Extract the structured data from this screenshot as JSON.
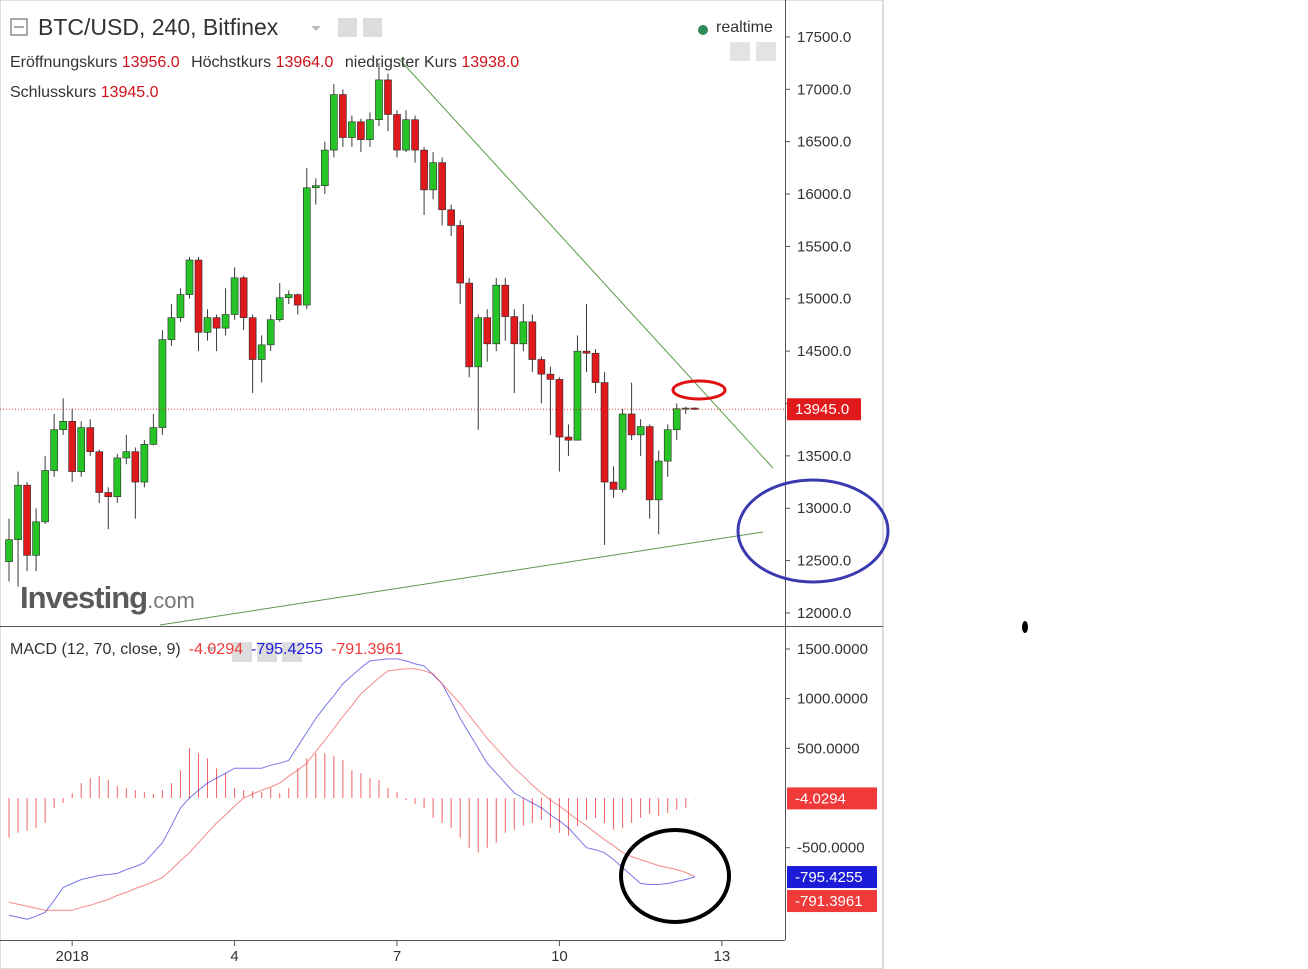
{
  "header": {
    "title": "BTC/USD, 240, Bitfinex",
    "status": "realtime",
    "ohlc": [
      {
        "label": "Eröffnungskurs",
        "value": "13956.0"
      },
      {
        "label": "Höchstkurs",
        "value": "13964.0"
      },
      {
        "label": "niedrigster Kurs",
        "value": "13938.0"
      },
      {
        "label": "Schlusskurs",
        "value": "13945.0"
      }
    ]
  },
  "watermark": [
    "Investing",
    ".com"
  ],
  "chart_data": [
    {
      "type": "candlestick",
      "up_color": "#27c427",
      "down_color": "#e0191c",
      "x": [
        -28,
        -24,
        -20,
        -16,
        -12,
        -8,
        -4,
        0,
        4,
        8,
        12,
        16,
        20,
        24,
        28,
        32,
        36,
        40,
        44,
        48,
        52,
        56,
        60,
        64,
        68,
        72,
        76,
        80,
        84,
        88,
        92,
        96,
        100,
        104,
        108,
        112,
        116,
        120,
        124,
        128,
        132,
        136,
        140,
        144,
        148,
        152,
        156,
        160,
        164,
        168,
        172,
        176,
        180,
        184,
        188,
        192,
        196,
        200,
        204,
        208,
        212,
        216,
        220,
        224,
        228,
        232,
        236,
        240,
        244,
        248,
        252,
        256,
        260,
        264,
        268,
        272,
        276
      ],
      "open": [
        12490,
        12700,
        13220,
        12550,
        12870,
        13360,
        13750,
        13830,
        13350,
        13770,
        13540,
        13150,
        13110,
        13480,
        13540,
        13250,
        13610,
        13770,
        14610,
        14820,
        15040,
        15370,
        14680,
        14820,
        14720,
        14850,
        15200,
        14820,
        14420,
        14560,
        14800,
        15010,
        15040,
        14940,
        16060,
        16080,
        16420,
        16950,
        16540,
        16690,
        16520,
        16710,
        17090,
        16760,
        16420,
        16710,
        16420,
        16040,
        16300,
        15850,
        15700,
        15150,
        14350,
        14820,
        14570,
        15130,
        14830,
        14570,
        14780,
        14420,
        14280,
        14230,
        13680,
        13650,
        14500,
        14480,
        14200,
        13250,
        13180,
        13900,
        13700,
        13780,
        13080,
        13450,
        13750,
        13950,
        13956
      ],
      "high": [
        12900,
        13350,
        13250,
        13000,
        13500,
        13900,
        14050,
        13950,
        13830,
        13850,
        13560,
        13200,
        13520,
        13700,
        13580,
        13650,
        13900,
        14700,
        14950,
        15100,
        15400,
        15400,
        14900,
        14850,
        15100,
        15300,
        15220,
        14850,
        14650,
        14850,
        15150,
        15080,
        15050,
        16250,
        16150,
        16500,
        17050,
        17000,
        16750,
        16720,
        16780,
        17250,
        17150,
        16800,
        16800,
        16750,
        16450,
        16400,
        16350,
        15900,
        15750,
        15200,
        14850,
        14900,
        15200,
        15200,
        14900,
        14950,
        14850,
        14450,
        14350,
        14250,
        13800,
        14650,
        14950,
        14520,
        14300,
        13400,
        13950,
        14200,
        13850,
        13800,
        13550,
        13800,
        14000,
        13970,
        13964
      ],
      "low": [
        12300,
        12250,
        12400,
        12400,
        12850,
        13300,
        13700,
        13250,
        13300,
        13500,
        13050,
        12800,
        13050,
        13420,
        12900,
        13200,
        13600,
        13700,
        14550,
        14780,
        15000,
        14500,
        14600,
        14500,
        14650,
        14800,
        14700,
        14100,
        14200,
        14500,
        14780,
        14950,
        14850,
        14900,
        15900,
        16000,
        16350,
        16450,
        16450,
        16400,
        16450,
        16650,
        16600,
        16350,
        16400,
        16300,
        15800,
        15950,
        15700,
        15600,
        14950,
        14250,
        13750,
        14400,
        14500,
        14600,
        14100,
        14500,
        14300,
        14000,
        13700,
        13350,
        13500,
        13650,
        14300,
        14100,
        12650,
        13100,
        13150,
        13650,
        13500,
        12900,
        12750,
        13300,
        13650,
        13900,
        13938
      ],
      "close": [
        12700,
        13220,
        12550,
        12870,
        13360,
        13750,
        13830,
        13350,
        13770,
        13540,
        13150,
        13110,
        13480,
        13540,
        13250,
        13610,
        13770,
        14610,
        14820,
        15040,
        15370,
        14680,
        14820,
        14720,
        14850,
        15200,
        14820,
        14420,
        14560,
        14800,
        15010,
        15040,
        14940,
        16060,
        16080,
        16420,
        16950,
        16540,
        16690,
        16520,
        16710,
        17090,
        16760,
        16420,
        16710,
        16420,
        16040,
        16300,
        15850,
        15700,
        15150,
        14350,
        14820,
        14570,
        15130,
        14830,
        14570,
        14780,
        14420,
        14280,
        14230,
        13680,
        13650,
        14500,
        14480,
        14200,
        13250,
        13180,
        13900,
        13700,
        13780,
        13080,
        13450,
        13750,
        13950,
        13956,
        13945
      ],
      "last_label": "13945.0",
      "xlim": [
        -32,
        316
      ],
      "ylim": [
        11885,
        17853
      ],
      "xticks": [
        {
          "value": 0,
          "label": "2018"
        },
        {
          "value": 72,
          "label": "4"
        },
        {
          "value": 144,
          "label": "7"
        },
        {
          "value": 216,
          "label": "10"
        },
        {
          "value": 288,
          "label": "13"
        }
      ],
      "yticks": [
        {
          "value": 12000,
          "label": "12000.0"
        },
        {
          "value": 12500,
          "label": "12500.0"
        },
        {
          "value": 13000,
          "label": "13000.0"
        },
        {
          "value": 13500,
          "label": "13500.0"
        },
        {
          "value": 14000,
          "label": "14000.0"
        },
        {
          "value": 14500,
          "label": "14500.0"
        },
        {
          "value": 15000,
          "label": "15000.0"
        },
        {
          "value": 15500,
          "label": "15500.0"
        },
        {
          "value": 16000,
          "label": "16000.0"
        },
        {
          "value": 16500,
          "label": "16500.0"
        },
        {
          "value": 17000,
          "label": "17000.0"
        },
        {
          "value": 17500,
          "label": "17500.0"
        }
      ]
    },
    {
      "type": "combo",
      "title": "MACD (12, 70, close, 9)",
      "ylim": [
        -1429,
        1711
      ],
      "yticks": [
        {
          "value": -500,
          "label": "-500.0000"
        },
        {
          "value": 500,
          "label": "500.0000"
        },
        {
          "value": 1000,
          "label": "1000.0000"
        },
        {
          "value": 1500,
          "label": "1500.0000"
        }
      ],
      "series": [
        {
          "type": "bar",
          "color": "#f03a3a",
          "last_label": "-4.0294",
          "values": [
            -400,
            -350,
            -330,
            -300,
            -250,
            -100,
            -50,
            50,
            150,
            200,
            220,
            180,
            120,
            100,
            80,
            60,
            40,
            80,
            150,
            280,
            500,
            450,
            400,
            300,
            250,
            100,
            80,
            70,
            60,
            100,
            50,
            100,
            300,
            400,
            450,
            450,
            420,
            380,
            280,
            250,
            200,
            180,
            100,
            60,
            -20,
            -60,
            -100,
            -200,
            -250,
            -300,
            -400,
            -500,
            -550,
            -500,
            -450,
            -350,
            -320,
            -280,
            -250,
            -220,
            -300,
            -350,
            -380,
            -280,
            -220,
            -200,
            -250,
            -320,
            -300,
            -250,
            -200,
            -160,
            -180,
            -150,
            -120,
            -100,
            -4.0294
          ]
        },
        {
          "type": "line",
          "color": "#1c1cd8",
          "last_label": "-795.4255",
          "values": [
            -1180,
            -1200,
            -1220,
            -1190,
            -1150,
            -1030,
            -900,
            -860,
            -820,
            -800,
            -780,
            -770,
            -760,
            -720,
            -690,
            -650,
            -550,
            -450,
            -280,
            -100,
            0,
            80,
            150,
            200,
            250,
            300,
            300,
            300,
            300,
            330,
            350,
            380,
            520,
            660,
            800,
            920,
            1030,
            1150,
            1230,
            1310,
            1380,
            1390,
            1400,
            1400,
            1380,
            1350,
            1330,
            1240,
            1150,
            980,
            800,
            650,
            500,
            350,
            250,
            150,
            50,
            0,
            -50,
            -100,
            -170,
            -230,
            -300,
            -400,
            -500,
            -520,
            -550,
            -620,
            -700,
            -780,
            -860,
            -870,
            -870,
            -860,
            -840,
            -820,
            -795.4255
          ]
        },
        {
          "type": "line",
          "color": "#f03a3a",
          "last_label": "-791.3961",
          "values": [
            -1050,
            -1070,
            -1090,
            -1110,
            -1130,
            -1130,
            -1130,
            -1130,
            -1100,
            -1080,
            -1050,
            -1020,
            -980,
            -950,
            -910,
            -880,
            -840,
            -800,
            -720,
            -630,
            -550,
            -450,
            -350,
            -250,
            -170,
            -80,
            0,
            40,
            80,
            110,
            150,
            220,
            280,
            350,
            470,
            580,
            700,
            820,
            930,
            1050,
            1130,
            1210,
            1280,
            1290,
            1300,
            1300,
            1280,
            1250,
            1150,
            1050,
            950,
            830,
            720,
            600,
            500,
            400,
            300,
            220,
            130,
            50,
            -20,
            -80,
            -150,
            -220,
            -280,
            -350,
            -420,
            -480,
            -550,
            -590,
            -620,
            -650,
            -680,
            -700,
            -720,
            -750,
            -791.3961
          ]
        }
      ]
    }
  ]
}
